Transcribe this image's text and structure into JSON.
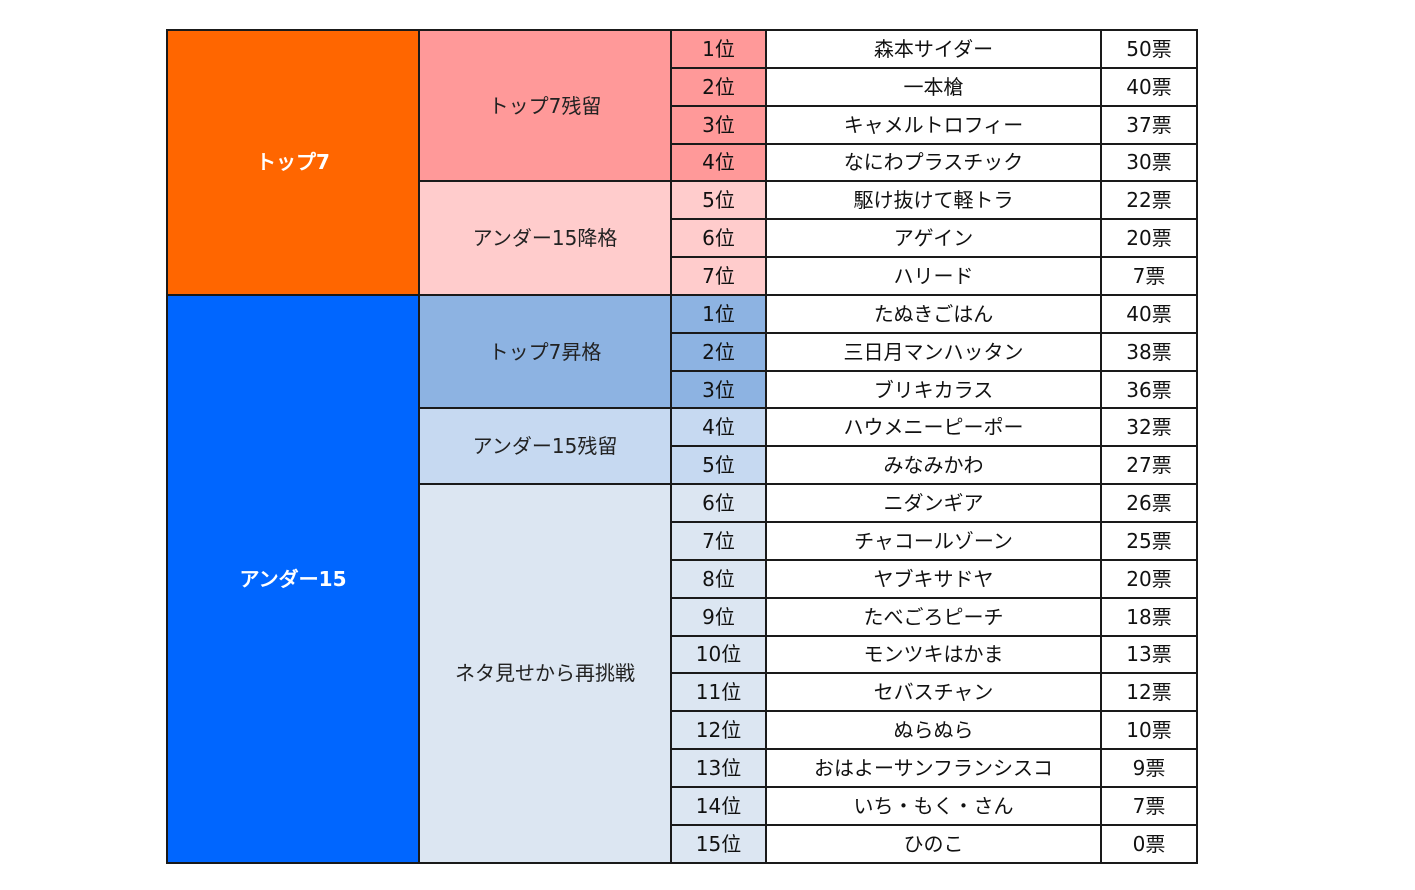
{
  "colors": {
    "top7_group": "#ff6600",
    "under15_group": "#0066ff",
    "top7_stay": "#ff9999",
    "top7_demote": "#ffcccc",
    "under15_promote": "#8db3e2",
    "under15_stay": "#c6d9f1",
    "under15_retry": "#dce6f2",
    "white": "#ffffff",
    "border": "#1a1a1a"
  },
  "groups": [
    {
      "label": "トップ7",
      "color_key": "top7_group",
      "subgroups": [
        {
          "label": "トップ7残留",
          "color_key": "top7_stay",
          "rows": [
            {
              "rank": "1位",
              "name": "森本サイダー",
              "votes": "50票"
            },
            {
              "rank": "2位",
              "name": "一本槍",
              "votes": "40票"
            },
            {
              "rank": "3位",
              "name": "キャメルトロフィー",
              "votes": "37票"
            },
            {
              "rank": "4位",
              "name": "なにわプラスチック",
              "votes": "30票"
            }
          ]
        },
        {
          "label": "アンダー15降格",
          "color_key": "top7_demote",
          "rows": [
            {
              "rank": "5位",
              "name": "駆け抜けて軽トラ",
              "votes": "22票"
            },
            {
              "rank": "6位",
              "name": "アゲイン",
              "votes": "20票"
            },
            {
              "rank": "7位",
              "name": "ハリード",
              "votes": "7票"
            }
          ]
        }
      ]
    },
    {
      "label": "アンダー15",
      "color_key": "under15_group",
      "subgroups": [
        {
          "label": "トップ7昇格",
          "color_key": "under15_promote",
          "rows": [
            {
              "rank": "1位",
              "name": "たぬきごはん",
              "votes": "40票"
            },
            {
              "rank": "2位",
              "name": "三日月マンハッタン",
              "votes": "38票"
            },
            {
              "rank": "3位",
              "name": "ブリキカラス",
              "votes": "36票"
            }
          ]
        },
        {
          "label": "アンダー15残留",
          "color_key": "under15_stay",
          "rows": [
            {
              "rank": "4位",
              "name": "ハウメニーピーポー",
              "votes": "32票"
            },
            {
              "rank": "5位",
              "name": "みなみかわ",
              "votes": "27票"
            }
          ]
        },
        {
          "label": "ネタ見せから再挑戦",
          "color_key": "under15_retry",
          "rows": [
            {
              "rank": "6位",
              "name": "ニダンギア",
              "votes": "26票"
            },
            {
              "rank": "7位",
              "name": "チャコールゾーン",
              "votes": "25票"
            },
            {
              "rank": "8位",
              "name": "ヤブキサドヤ",
              "votes": "20票"
            },
            {
              "rank": "9位",
              "name": "たべごろピーチ",
              "votes": "18票"
            },
            {
              "rank": "10位",
              "name": "モンツキはかま",
              "votes": "13票"
            },
            {
              "rank": "11位",
              "name": "セバスチャン",
              "votes": "12票"
            },
            {
              "rank": "12位",
              "name": "ぬらぬら",
              "votes": "10票"
            },
            {
              "rank": "13位",
              "name": "おはよーサンフランシスコ",
              "votes": "9票"
            },
            {
              "rank": "14位",
              "name": "いち・もく・さん",
              "votes": "7票"
            },
            {
              "rank": "15位",
              "name": "ひのこ",
              "votes": "0票"
            }
          ]
        }
      ]
    }
  ]
}
